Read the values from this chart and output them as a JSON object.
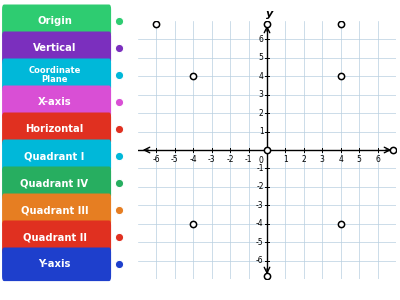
{
  "background_color": "#ffffff",
  "grid_color": "#b8cfe0",
  "grid_bg": "#ddeef8",
  "labels": [
    {
      "text": "Origin",
      "color": "#2ecc71"
    },
    {
      "text": "Vertical",
      "color": "#7b2fbe"
    },
    {
      "text": "Coordinate\nPlane",
      "color": "#00b8d9"
    },
    {
      "text": "X-axis",
      "color": "#d94fd5"
    },
    {
      "text": "Horizontal",
      "color": "#e03020"
    },
    {
      "text": "Quadrant I",
      "color": "#00b8d9"
    },
    {
      "text": "Quadrant IV",
      "color": "#27ae60"
    },
    {
      "text": "Quadrant III",
      "color": "#e67e22"
    },
    {
      "text": "Quadrant II",
      "color": "#e03020"
    },
    {
      "text": "Y-axis",
      "color": "#1e3fcc"
    }
  ],
  "points": [
    [
      0,
      0
    ],
    [
      0,
      6.85
    ],
    [
      -4,
      4
    ],
    [
      4,
      4
    ],
    [
      6.85,
      0
    ],
    [
      -6,
      6.85
    ],
    [
      4,
      6.85
    ],
    [
      -4,
      -4
    ],
    [
      4,
      -4
    ],
    [
      0,
      -6.85
    ]
  ]
}
